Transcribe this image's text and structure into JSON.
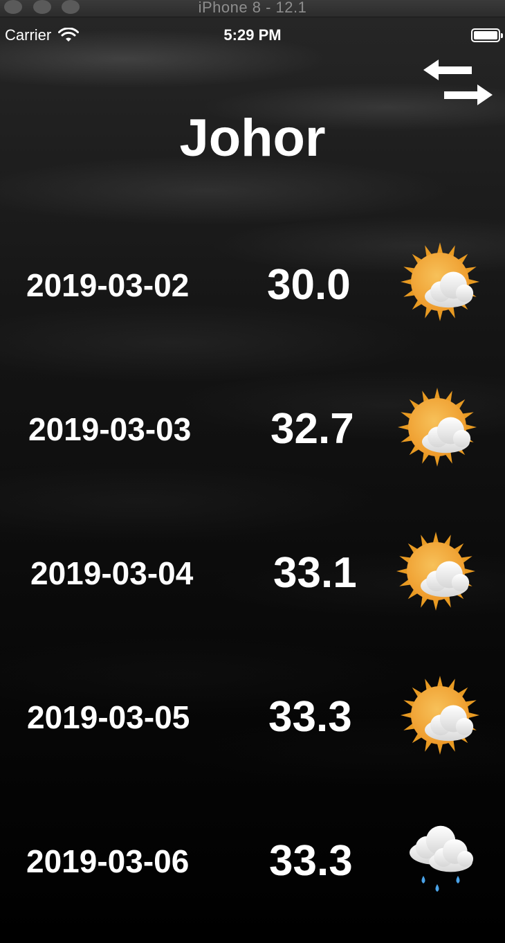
{
  "window": {
    "title": "iPhone 8 - 12.1"
  },
  "status_bar": {
    "carrier": "Carrier",
    "time": "5:29 PM"
  },
  "header": {
    "city": "Johor",
    "swap_icon": "swap-arrows-icon"
  },
  "forecast": [
    {
      "date": "2019-03-02",
      "temperature": "30.0",
      "icon": "partly-cloudy-sun-icon"
    },
    {
      "date": "2019-03-03",
      "temperature": "32.7",
      "icon": "partly-cloudy-sun-icon"
    },
    {
      "date": "2019-03-04",
      "temperature": "33.1",
      "icon": "partly-cloudy-sun-icon"
    },
    {
      "date": "2019-03-05",
      "temperature": "33.3",
      "icon": "partly-cloudy-sun-icon"
    },
    {
      "date": "2019-03-06",
      "temperature": "33.3",
      "icon": "rain-cloud-icon"
    }
  ],
  "colors": {
    "sun": "#f2a531",
    "sun_rays": "#e89a22",
    "cloud": "#f2f2f2",
    "rain": "#4aa3e8"
  }
}
